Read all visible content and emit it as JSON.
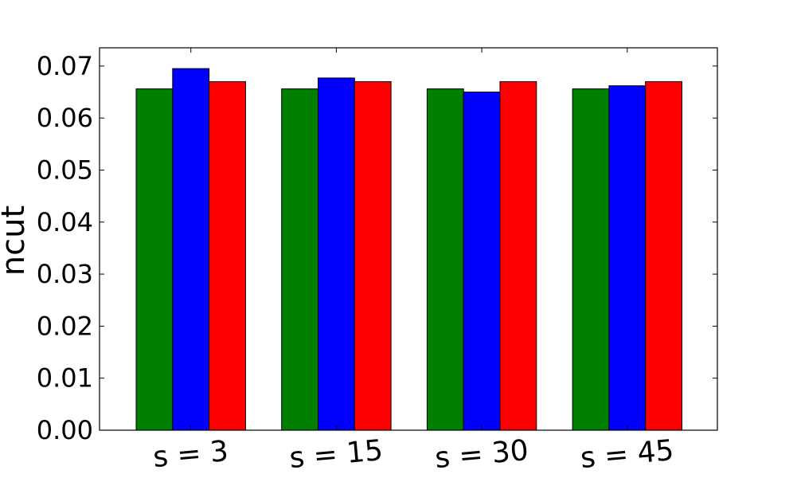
{
  "chart_data": {
    "type": "bar",
    "title": "",
    "xlabel": "",
    "ylabel": "ncut",
    "categories": [
      "s = 3",
      "s = 15",
      "s = 30",
      "s = 45"
    ],
    "series": [
      {
        "color": "#007f00",
        "values": [
          0.0656,
          0.0656,
          0.0656,
          0.0656
        ]
      },
      {
        "color": "#0000ff",
        "values": [
          0.0695,
          0.0677,
          0.065,
          0.0662
        ]
      },
      {
        "color": "#ff0000",
        "values": [
          0.067,
          0.067,
          0.067,
          0.067
        ]
      }
    ],
    "ylim": [
      0,
      0.0735
    ],
    "yticks": [
      "0.00",
      "0.01",
      "0.02",
      "0.03",
      "0.04",
      "0.05",
      "0.06",
      "0.07"
    ],
    "grid": false,
    "legend": "none",
    "xtick_rotation_deg": -5
  }
}
